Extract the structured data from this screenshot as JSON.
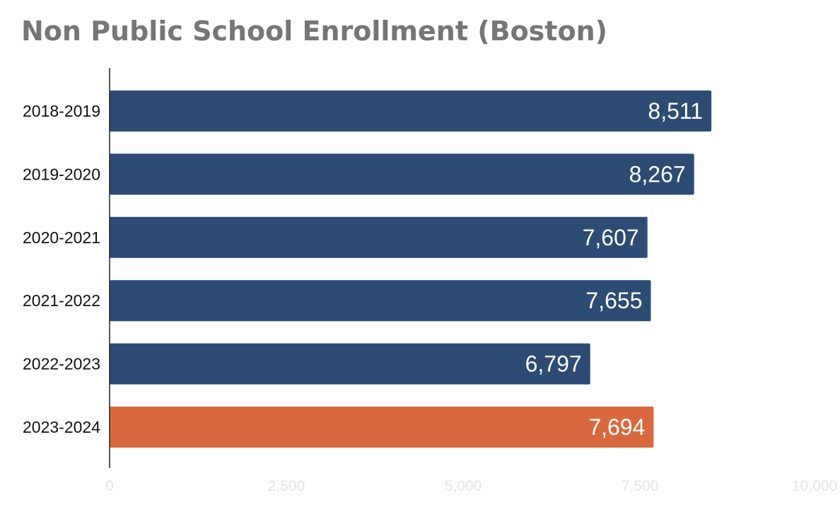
{
  "chart_data": {
    "type": "bar",
    "orientation": "horizontal",
    "title": "Non Public School Enrollment (Boston)",
    "categories": [
      "2018-2019",
      "2019-2020",
      "2020-2021",
      "2021-2022",
      "2022-2023",
      "2023-2024"
    ],
    "values": [
      8511,
      8267,
      7607,
      7655,
      6797,
      7694
    ],
    "value_labels": [
      "8,511",
      "8,267",
      "7,607",
      "7,655",
      "6,797",
      "7,694"
    ],
    "xlim": [
      0,
      10000
    ],
    "xticks": [
      0,
      2500,
      5000,
      7500,
      10000
    ],
    "xtick_labels": [
      "0",
      "2,500",
      "5,000",
      "7,500",
      "10,000"
    ],
    "xlabel": "",
    "ylabel": "",
    "grid": false,
    "colors": {
      "default": "#2c4c74",
      "highlight": "#d8693e",
      "highlight_index": 5
    }
  }
}
